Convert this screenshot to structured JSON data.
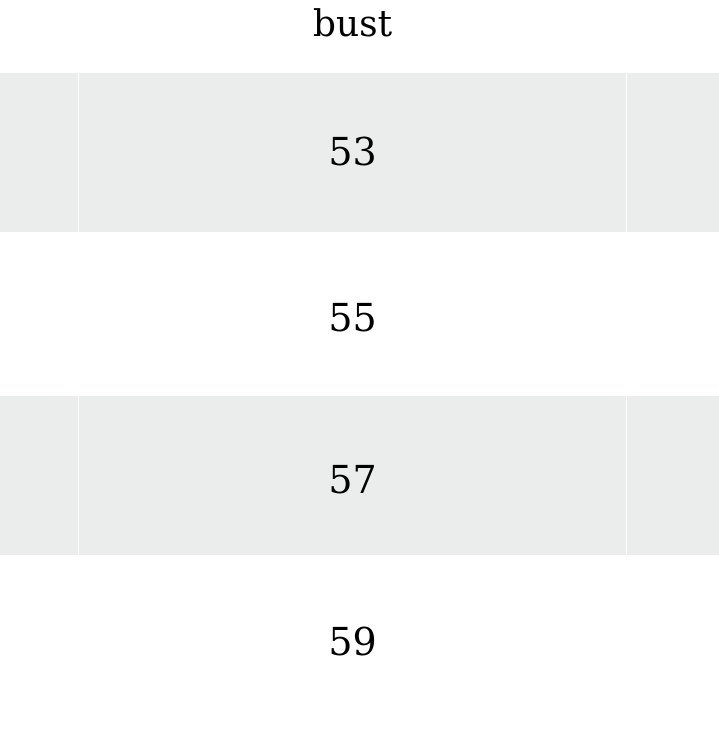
{
  "table": {
    "header": "bust",
    "rows": [
      "53",
      "55",
      "57",
      "59"
    ],
    "stripe_color": "#ebeded"
  }
}
